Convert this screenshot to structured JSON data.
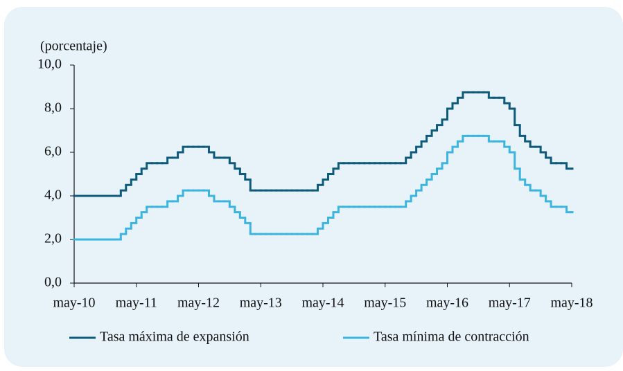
{
  "chart_data": {
    "type": "step-line",
    "y_label": "(porcentaje)",
    "categories": [
      "may-10",
      null,
      null,
      null,
      null,
      null,
      null,
      null,
      null,
      null,
      null,
      null,
      "may-11",
      null,
      null,
      null,
      null,
      null,
      null,
      null,
      null,
      null,
      null,
      null,
      "may-12",
      null,
      null,
      null,
      null,
      null,
      null,
      null,
      null,
      null,
      null,
      null,
      "may-13",
      null,
      null,
      null,
      null,
      null,
      null,
      null,
      null,
      null,
      null,
      null,
      "may-14",
      null,
      null,
      null,
      null,
      null,
      null,
      null,
      null,
      null,
      null,
      null,
      "may-15",
      null,
      null,
      null,
      null,
      null,
      null,
      null,
      null,
      null,
      null,
      null,
      "may-16",
      null,
      null,
      null,
      null,
      null,
      null,
      null,
      null,
      null,
      null,
      null,
      "may-17",
      null,
      null,
      null,
      null,
      null,
      null,
      null,
      null,
      null,
      null,
      null,
      "may-18"
    ],
    "series": [
      {
        "name": "Tasa máxima de expansión",
        "color": "#0e5a7a",
        "values": [
          4.0,
          4.0,
          4.0,
          4.0,
          4.0,
          4.0,
          4.0,
          4.0,
          4.0,
          4.25,
          4.5,
          4.75,
          5.0,
          5.25,
          5.5,
          5.5,
          5.5,
          5.5,
          5.75,
          5.75,
          6.0,
          6.25,
          6.25,
          6.25,
          6.25,
          6.25,
          6.0,
          5.75,
          5.75,
          5.75,
          5.5,
          5.25,
          5.0,
          4.75,
          4.25,
          4.25,
          4.25,
          4.25,
          4.25,
          4.25,
          4.25,
          4.25,
          4.25,
          4.25,
          4.25,
          4.25,
          4.25,
          4.5,
          4.75,
          5.0,
          5.25,
          5.5,
          5.5,
          5.5,
          5.5,
          5.5,
          5.5,
          5.5,
          5.5,
          5.5,
          5.5,
          5.5,
          5.5,
          5.5,
          5.75,
          6.0,
          6.25,
          6.5,
          6.75,
          7.0,
          7.25,
          7.5,
          8.0,
          8.25,
          8.5,
          8.75,
          8.75,
          8.75,
          8.75,
          8.75,
          8.5,
          8.5,
          8.5,
          8.25,
          8.0,
          7.25,
          6.75,
          6.5,
          6.25,
          6.25,
          6.0,
          5.75,
          5.5,
          5.5,
          5.5,
          5.25,
          5.25
        ]
      },
      {
        "name": "Tasa mínima de contracción",
        "color": "#3cb4e0",
        "values": [
          2.0,
          2.0,
          2.0,
          2.0,
          2.0,
          2.0,
          2.0,
          2.0,
          2.0,
          2.25,
          2.5,
          2.75,
          3.0,
          3.25,
          3.5,
          3.5,
          3.5,
          3.5,
          3.75,
          3.75,
          4.0,
          4.25,
          4.25,
          4.25,
          4.25,
          4.25,
          4.0,
          3.75,
          3.75,
          3.75,
          3.5,
          3.25,
          3.0,
          2.75,
          2.25,
          2.25,
          2.25,
          2.25,
          2.25,
          2.25,
          2.25,
          2.25,
          2.25,
          2.25,
          2.25,
          2.25,
          2.25,
          2.5,
          2.75,
          3.0,
          3.25,
          3.5,
          3.5,
          3.5,
          3.5,
          3.5,
          3.5,
          3.5,
          3.5,
          3.5,
          3.5,
          3.5,
          3.5,
          3.5,
          3.75,
          4.0,
          4.25,
          4.5,
          4.75,
          5.0,
          5.25,
          5.5,
          6.0,
          6.25,
          6.5,
          6.75,
          6.75,
          6.75,
          6.75,
          6.75,
          6.5,
          6.5,
          6.5,
          6.25,
          6.0,
          5.25,
          4.75,
          4.5,
          4.25,
          4.25,
          4.0,
          3.75,
          3.5,
          3.5,
          3.5,
          3.25,
          3.25
        ]
      }
    ],
    "ylim": [
      0,
      10
    ],
    "yticks": [
      {
        "value": 0,
        "label": "0,0"
      },
      {
        "value": 2,
        "label": "2,0"
      },
      {
        "value": 4,
        "label": "4,0"
      },
      {
        "value": 6,
        "label": "6,0"
      },
      {
        "value": 8,
        "label": "8,0"
      },
      {
        "value": 10,
        "label": "10,0"
      }
    ],
    "legend": "bottom"
  }
}
